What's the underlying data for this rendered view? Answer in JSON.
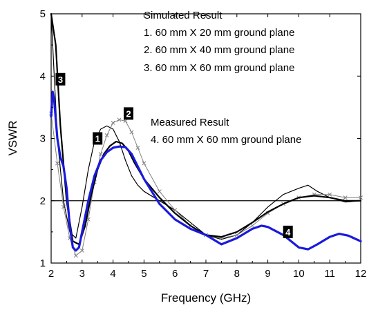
{
  "chart_data": {
    "type": "line",
    "xlabel": "Frequency (GHz)",
    "ylabel": "VSWR",
    "xlim": [
      2,
      12
    ],
    "ylim": [
      1,
      5
    ],
    "xticks": [
      2,
      3,
      4,
      5,
      6,
      7,
      8,
      9,
      10,
      11,
      12
    ],
    "yticks": [
      1,
      2,
      3,
      4,
      5
    ],
    "grid": false,
    "reference_line": {
      "y": 2
    },
    "annotations": {
      "simulated_heading": "Simulated Result",
      "simulated_items": [
        "1. 60 mm X 20 mm ground plane",
        "2. 60 mm X 40 mm ground plane",
        "3. 60 mm X 60 mm ground plane"
      ],
      "measured_heading": "Measured Result",
      "measured_items": [
        "4. 60 mm X 60 mm ground plane"
      ]
    },
    "series": [
      {
        "label": "1",
        "color": "#000000",
        "style": "thin",
        "badge_at": [
          3.5,
          3.0
        ],
        "x": [
          2.0,
          2.2,
          2.4,
          2.6,
          2.8,
          3.0,
          3.2,
          3.4,
          3.6,
          3.8,
          4.0,
          4.2,
          4.4,
          4.6,
          4.8,
          5.0,
          5.5,
          6.0,
          6.5,
          7.0,
          7.5,
          8.0,
          8.5,
          9.0,
          9.5,
          10.0,
          10.3,
          10.6,
          11.0,
          11.5,
          12.0
        ],
        "y": [
          5.0,
          3.0,
          2.0,
          1.5,
          1.4,
          1.9,
          2.5,
          2.95,
          3.15,
          3.2,
          3.15,
          2.95,
          2.65,
          2.4,
          2.25,
          2.15,
          2.0,
          1.85,
          1.65,
          1.45,
          1.38,
          1.45,
          1.65,
          1.9,
          2.1,
          2.2,
          2.25,
          2.15,
          2.05,
          1.98,
          2.0
        ]
      },
      {
        "label": "2",
        "color": "#808080",
        "style": "x-markers",
        "badge_at": [
          4.5,
          3.4
        ],
        "x": [
          2.0,
          2.2,
          2.4,
          2.6,
          2.8,
          3.0,
          3.2,
          3.4,
          3.6,
          3.8,
          4.0,
          4.2,
          4.4,
          4.6,
          4.8,
          5.0,
          5.5,
          6.0,
          6.5,
          7.0,
          7.5,
          8.0,
          8.5,
          9.0,
          9.5,
          10.0,
          10.5,
          11.0,
          11.5,
          12.0
        ],
        "y": [
          3.4,
          2.6,
          1.9,
          1.4,
          1.12,
          1.2,
          1.7,
          2.3,
          2.75,
          3.05,
          3.25,
          3.3,
          3.28,
          3.1,
          2.85,
          2.6,
          2.15,
          1.85,
          1.6,
          1.45,
          1.4,
          1.45,
          1.6,
          1.8,
          1.95,
          2.05,
          2.1,
          2.1,
          2.05,
          2.05
        ]
      },
      {
        "label": "3",
        "color": "#000000",
        "style": "thick",
        "badge_at": [
          2.3,
          3.95
        ],
        "x": [
          2.0,
          2.15,
          2.3,
          2.5,
          2.7,
          2.9,
          3.1,
          3.3,
          3.5,
          3.7,
          3.9,
          4.1,
          4.3,
          4.5,
          4.7,
          5.0,
          5.5,
          6.0,
          6.5,
          7.0,
          7.5,
          8.0,
          8.5,
          9.0,
          9.5,
          10.0,
          10.5,
          11.0,
          11.5,
          12.0
        ],
        "y": [
          5.0,
          4.5,
          3.2,
          2.0,
          1.35,
          1.3,
          1.6,
          2.1,
          2.5,
          2.75,
          2.88,
          2.95,
          2.92,
          2.8,
          2.6,
          2.35,
          2.05,
          1.8,
          1.6,
          1.45,
          1.42,
          1.5,
          1.65,
          1.82,
          1.95,
          2.05,
          2.08,
          2.05,
          2.0,
          2.0
        ]
      },
      {
        "label": "4",
        "color": "#1a1adc",
        "style": "measured",
        "badge_at": [
          9.65,
          1.5
        ],
        "x": [
          2.0,
          2.05,
          2.1,
          2.2,
          2.3,
          2.4,
          2.5,
          2.6,
          2.7,
          2.8,
          2.9,
          3.0,
          3.2,
          3.4,
          3.6,
          3.8,
          4.0,
          4.2,
          4.4,
          4.6,
          4.8,
          5.0,
          5.5,
          6.0,
          6.5,
          7.0,
          7.5,
          8.0,
          8.5,
          8.8,
          9.0,
          9.5,
          10.0,
          10.3,
          10.6,
          11.0,
          11.3,
          11.6,
          12.0
        ],
        "y": [
          3.35,
          3.75,
          3.6,
          3.0,
          2.7,
          2.55,
          2.2,
          1.6,
          1.25,
          1.2,
          1.25,
          1.5,
          2.0,
          2.4,
          2.65,
          2.78,
          2.85,
          2.87,
          2.86,
          2.75,
          2.55,
          2.35,
          1.95,
          1.7,
          1.55,
          1.45,
          1.3,
          1.4,
          1.55,
          1.6,
          1.58,
          1.45,
          1.25,
          1.22,
          1.3,
          1.42,
          1.47,
          1.44,
          1.35
        ]
      }
    ]
  }
}
